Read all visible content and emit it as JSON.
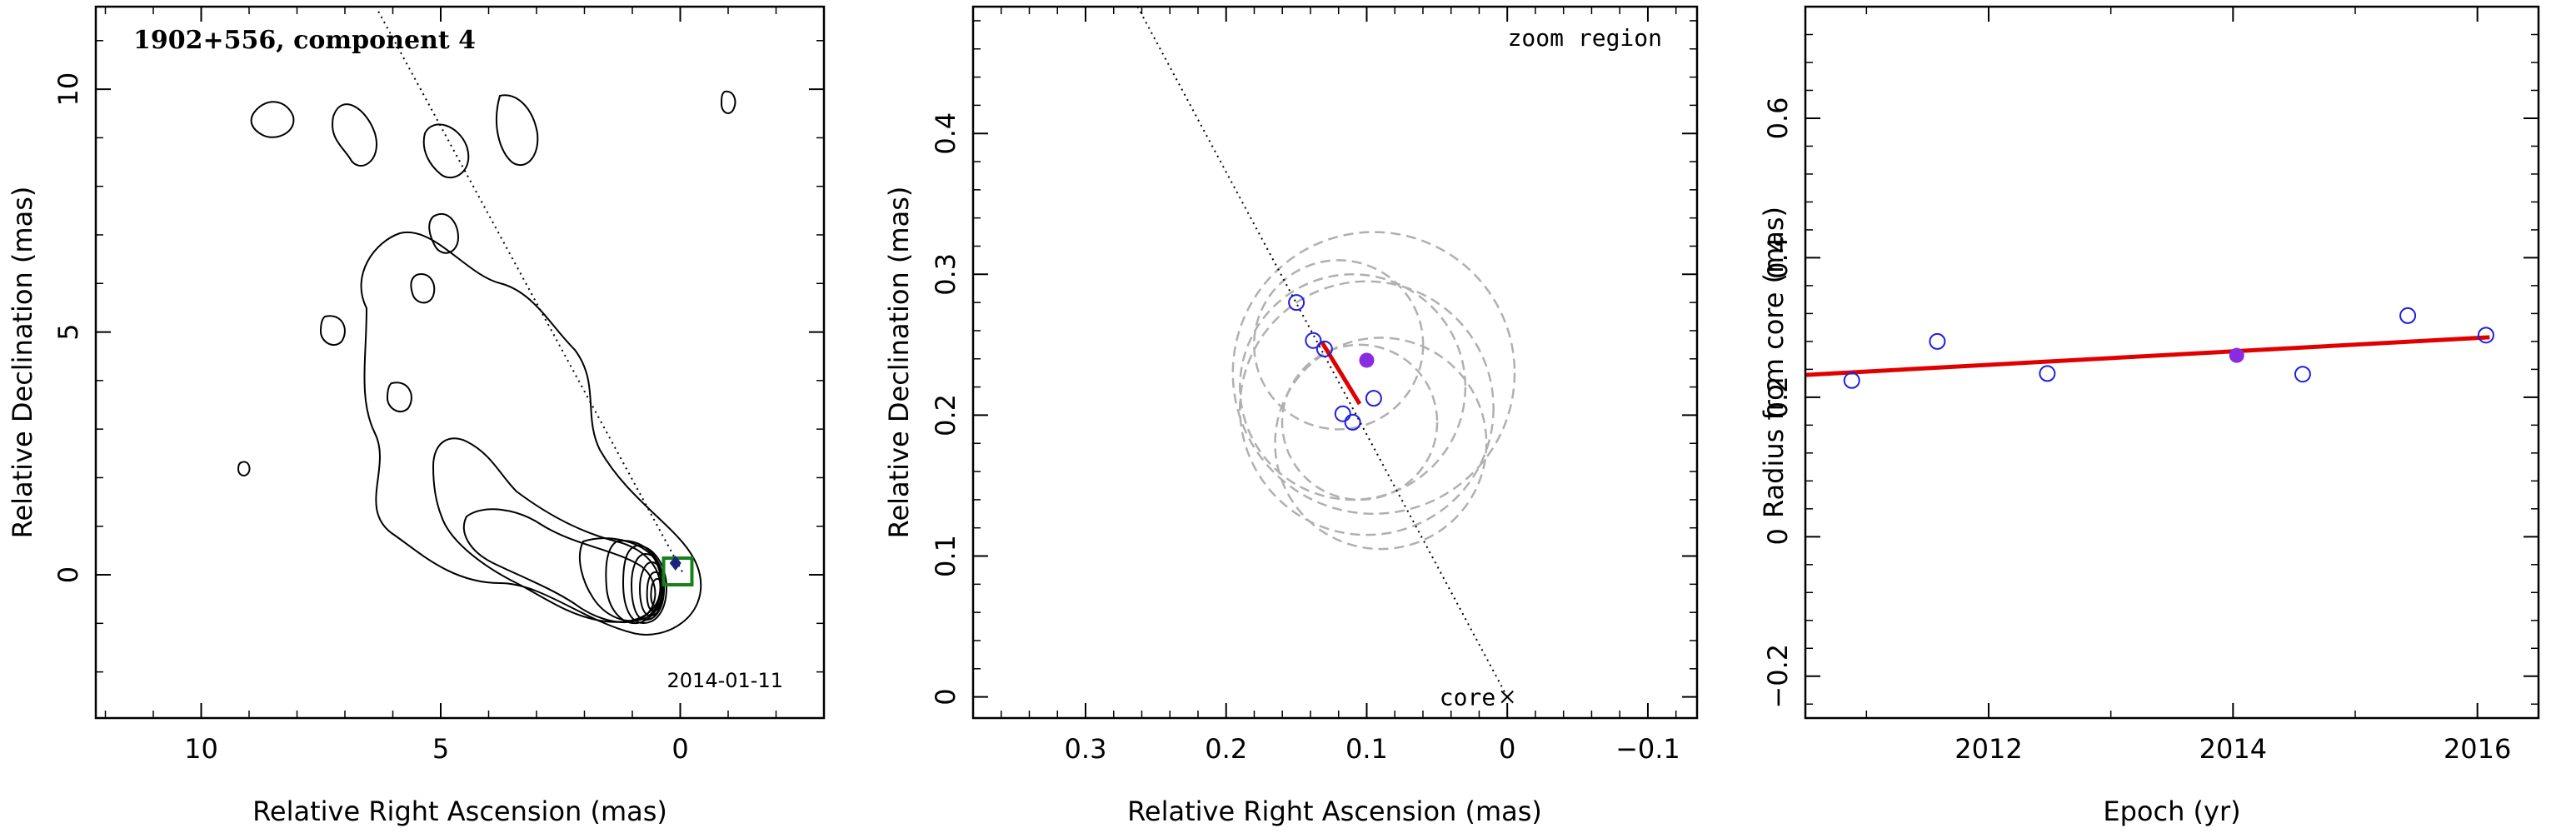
{
  "chart_data": [
    {
      "type": "contour",
      "title": "1902+556, component 4",
      "date_label": "2014-01-11",
      "xlabel": "Relative Right Ascension (mas)",
      "ylabel": "Relative Declination (mas)",
      "xlim": [
        12.2,
        -3.0
      ],
      "ylim": [
        -2.95,
        11.7
      ],
      "x_ticks": [
        10,
        5,
        0
      ],
      "y_ticks": [
        0,
        5,
        10
      ],
      "core_position": [
        0,
        0
      ],
      "component_marker": [
        0.1,
        0.24
      ],
      "axis_line": {
        "x": [
          6.3,
          -0.05
        ],
        "y": [
          11.6,
          0.05
        ]
      },
      "colors": {
        "contour": "#000000",
        "box": "#1a7f1a",
        "marker": "#1a237e"
      }
    },
    {
      "type": "scatter",
      "title": "zoom region",
      "core_label": "core",
      "xlabel": "Relative Right Ascension (mas)",
      "ylabel": "Relative Declination (mas)",
      "xlim": [
        0.38,
        -0.135
      ],
      "ylim": [
        -0.015,
        0.49
      ],
      "x_ticks": [
        0.3,
        0.2,
        0.1,
        0,
        -0.1
      ],
      "x_tick_labels": [
        "0.3",
        "0.2",
        "0.1",
        "0",
        "−0.1"
      ],
      "y_ticks": [
        0,
        0.1,
        0.2,
        0.3,
        0.4
      ],
      "y_tick_labels": [
        "0",
        "0.1",
        "0.2",
        "0.3",
        "0.4"
      ],
      "points": [
        {
          "x": 0.15,
          "y": 0.28
        },
        {
          "x": 0.138,
          "y": 0.253
        },
        {
          "x": 0.13,
          "y": 0.247
        },
        {
          "x": 0.117,
          "y": 0.201
        },
        {
          "x": 0.11,
          "y": 0.195
        },
        {
          "x": 0.095,
          "y": 0.212
        }
      ],
      "mean_point": {
        "x": 0.1,
        "y": 0.239
      },
      "fit_line": {
        "x": [
          0.132,
          0.105
        ],
        "y": [
          0.252,
          0.208
        ]
      },
      "ridge_line": {
        "x": [
          0.263,
          0.0
        ],
        "y": [
          0.49,
          0.0
        ]
      },
      "ellipses": [
        {
          "cx": 0.095,
          "cy": 0.23,
          "r": 0.1
        },
        {
          "cx": 0.11,
          "cy": 0.22,
          "r": 0.08
        },
        {
          "cx": 0.12,
          "cy": 0.25,
          "r": 0.06
        },
        {
          "cx": 0.09,
          "cy": 0.18,
          "r": 0.075
        },
        {
          "cx": 0.105,
          "cy": 0.195,
          "r": 0.055
        },
        {
          "cx": 0.1,
          "cy": 0.205,
          "r": 0.09
        }
      ],
      "colors": {
        "points": "#1f1fe0",
        "mean": "#8a2be2",
        "fit": "#e00000",
        "ellipse": "#b0b0b0"
      }
    },
    {
      "type": "scatter",
      "xlabel": "Epoch (yr)",
      "ylabel": "Radius from core (mas)",
      "xlim": [
        2010.5,
        2016.5
      ],
      "ylim": [
        -0.26,
        0.76
      ],
      "x_ticks": [
        2012,
        2014,
        2016
      ],
      "x_tick_labels": [
        "2012",
        "2014",
        "2016"
      ],
      "y_ticks": [
        -0.2,
        0,
        0.2,
        0.4,
        0.6
      ],
      "y_tick_labels": [
        "−0.2",
        "0",
        "0.2",
        "0.4",
        "0.6"
      ],
      "points": [
        {
          "x": 2010.88,
          "y": 0.224
        },
        {
          "x": 2011.58,
          "y": 0.28
        },
        {
          "x": 2012.48,
          "y": 0.234
        },
        {
          "x": 2014.57,
          "y": 0.233
        },
        {
          "x": 2015.43,
          "y": 0.317
        },
        {
          "x": 2016.07,
          "y": 0.289
        }
      ],
      "mean_point": {
        "x": 2014.03,
        "y": 0.26
      },
      "fit_line": {
        "x": [
          2010.5,
          2016.1
        ],
        "y": [
          0.232,
          0.286
        ]
      },
      "colors": {
        "points": "#1f1fe0",
        "mean": "#8a2be2",
        "fit": "#e00000"
      }
    }
  ]
}
